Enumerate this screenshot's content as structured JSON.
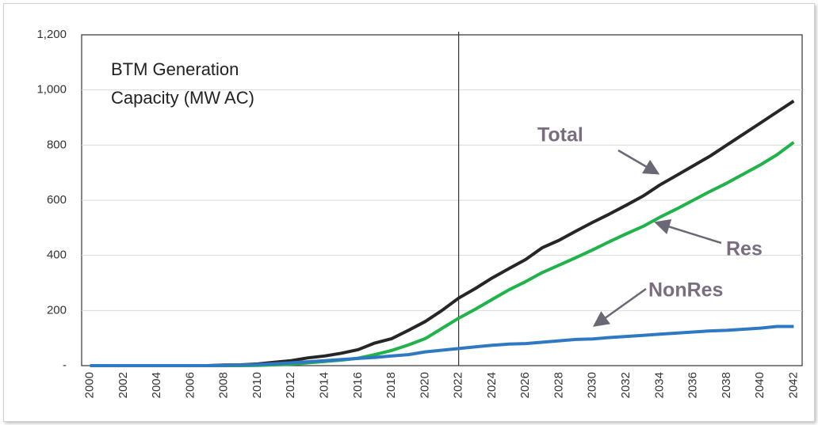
{
  "chart_data": {
    "type": "line",
    "title": "BTM Generation Capacity (MW AC)",
    "categories": [
      2000,
      null,
      2002,
      null,
      2004,
      null,
      2006,
      null,
      2008,
      null,
      2010,
      null,
      2012,
      null,
      2014,
      null,
      2016,
      null,
      2018,
      null,
      2020,
      null,
      2022,
      null,
      2024,
      null,
      2026,
      null,
      2028,
      null,
      2030,
      null,
      2032,
      null,
      2034,
      null,
      2036,
      null,
      2038,
      null,
      2040,
      null,
      2042
    ],
    "series": [
      {
        "name": "Total",
        "color": "#262626",
        "values": [
          0,
          0,
          0,
          0,
          0,
          0,
          0,
          0,
          2,
          3,
          6,
          12,
          18,
          28,
          35,
          45,
          58,
          82,
          98,
          128,
          160,
          200,
          245,
          280,
          318,
          352,
          385,
          428,
          455,
          488,
          520,
          550,
          582,
          615,
          655,
          690,
          725,
          760,
          800,
          840,
          880,
          920,
          960
        ]
      },
      {
        "name": "Res",
        "color": "#1fb34a",
        "values": [
          0,
          0,
          0,
          0,
          0,
          0,
          0,
          0,
          0,
          0,
          1,
          3,
          5,
          10,
          15,
          20,
          27,
          40,
          55,
          75,
          98,
          135,
          172,
          205,
          240,
          275,
          305,
          338,
          365,
          392,
          420,
          450,
          478,
          505,
          538,
          568,
          600,
          632,
          662,
          695,
          728,
          765,
          810
        ]
      },
      {
        "name": "NonRes",
        "color": "#2f79c2",
        "values": [
          0,
          0,
          0,
          0,
          0,
          0,
          0,
          0,
          1,
          2,
          4,
          7,
          10,
          14,
          18,
          22,
          26,
          30,
          35,
          40,
          50,
          56,
          62,
          68,
          74,
          78,
          80,
          85,
          90,
          95,
          97,
          102,
          106,
          110,
          114,
          118,
          122,
          126,
          128,
          132,
          136,
          142,
          142
        ]
      }
    ],
    "ylim": [
      0,
      1200
    ],
    "yticks": [
      {
        "value": 0,
        "label": "-"
      },
      200,
      400,
      600,
      800,
      {
        "value": 1000,
        "label": "1,000"
      },
      {
        "value": 1200,
        "label": "1,200"
      }
    ],
    "grid": true,
    "vline": 2022
  }
}
